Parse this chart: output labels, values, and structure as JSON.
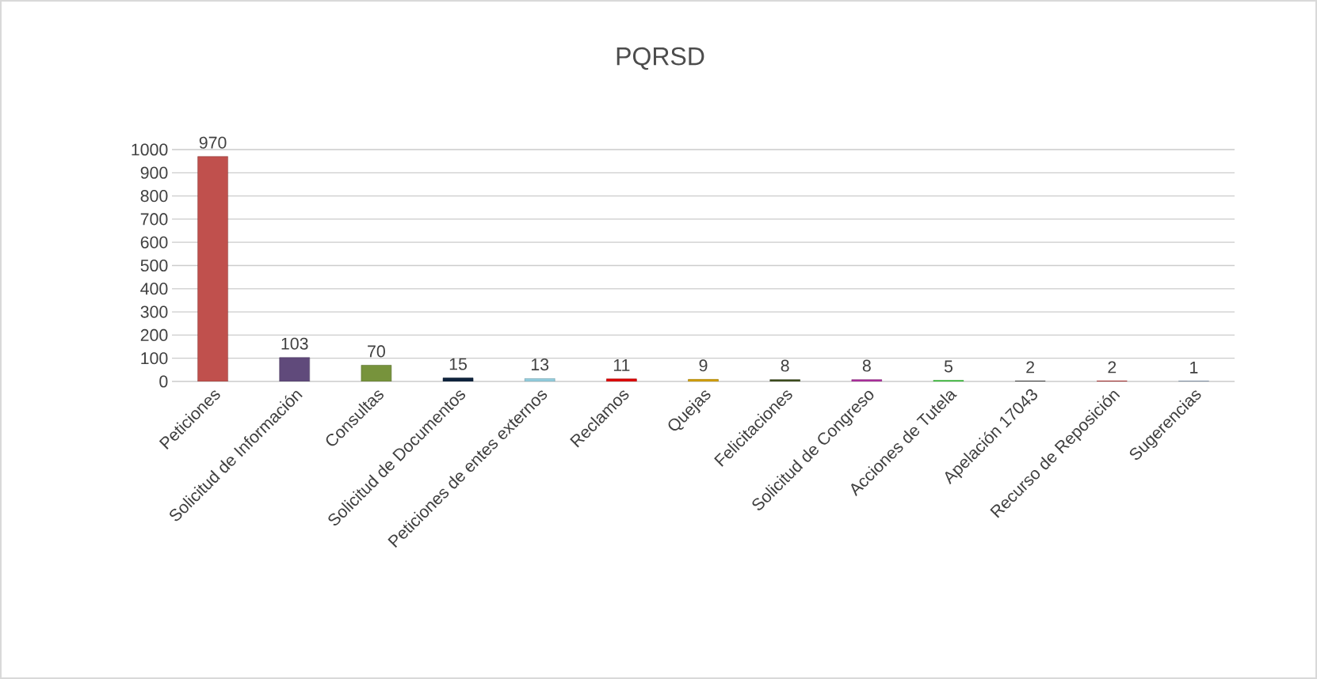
{
  "chart_data": {
    "type": "bar",
    "title": "PQRSD",
    "categories": [
      "Peticiones",
      "Solicitud de Información",
      "Consultas",
      "Solicitud de Documentos",
      "Peticiones de entes externos",
      "Reclamos",
      "Quejas",
      "Felicitaciones",
      "Solicitud de Congreso",
      "Acciones de Tutela",
      "Apelación 17043",
      "Recurso de Reposición",
      "Sugerencias"
    ],
    "values": [
      970,
      103,
      70,
      15,
      13,
      11,
      9,
      8,
      8,
      5,
      2,
      2,
      1
    ],
    "colors": [
      "#c0504d",
      "#604a7b",
      "#77933c",
      "#0f243e",
      "#93cddd",
      "#e00000",
      "#d4a000",
      "#3f4f1f",
      "#b030a0",
      "#33cc33",
      "#262626",
      "#c00000",
      "#7090b8"
    ],
    "ylim": [
      0,
      1000
    ],
    "yticks": [
      0,
      100,
      200,
      300,
      400,
      500,
      600,
      700,
      800,
      900,
      1000
    ],
    "grid": "y",
    "data_labels": true
  }
}
